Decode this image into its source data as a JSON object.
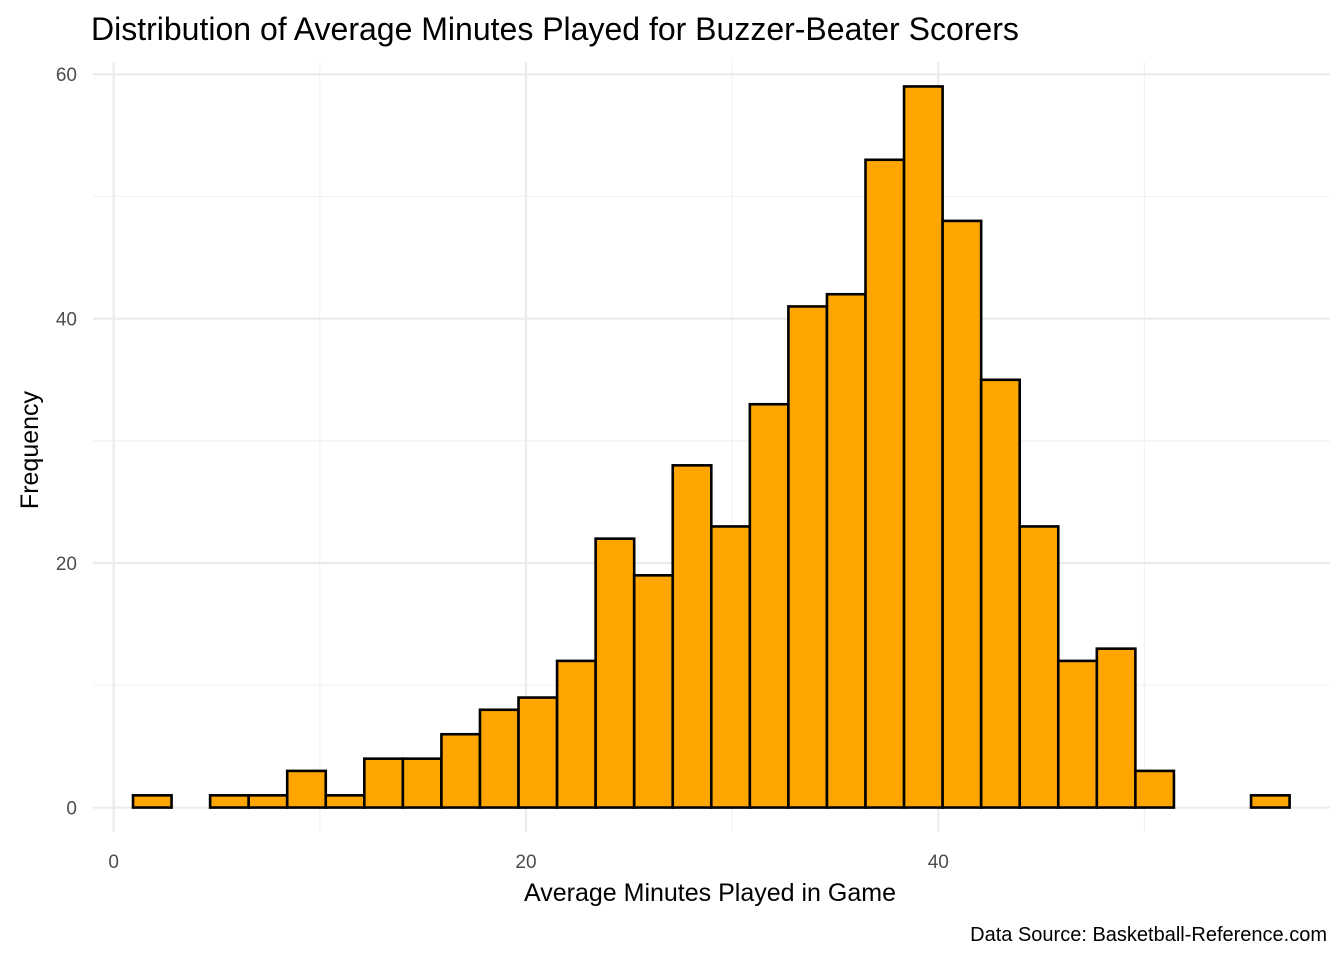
{
  "chart_data": {
    "type": "bar",
    "title": "Distribution of Average Minutes Played for Buzzer-Beater Scorers",
    "xlabel": "Average Minutes Played in Game",
    "ylabel": "Frequency",
    "caption": "Data Source: Basketball-Reference.com",
    "xlim": [
      -1,
      59
    ],
    "ylim": [
      -2,
      61
    ],
    "x_ticks": [
      0,
      20,
      40
    ],
    "x_tick_labels": [
      "0",
      "20",
      "40"
    ],
    "y_ticks": [
      0,
      20,
      40,
      60
    ],
    "y_tick_labels": [
      "0",
      "20",
      "40",
      "60"
    ],
    "grid": true,
    "bar_color": "#ffa500",
    "bar_edge_color": "#000000",
    "bin_width": 1.87,
    "bin_start": 0.94,
    "values": [
      1,
      0,
      1,
      1,
      3,
      1,
      4,
      4,
      6,
      8,
      9,
      12,
      22,
      19,
      28,
      23,
      33,
      41,
      42,
      53,
      59,
      48,
      35,
      23,
      12,
      13,
      3,
      0,
      0,
      1
    ]
  }
}
